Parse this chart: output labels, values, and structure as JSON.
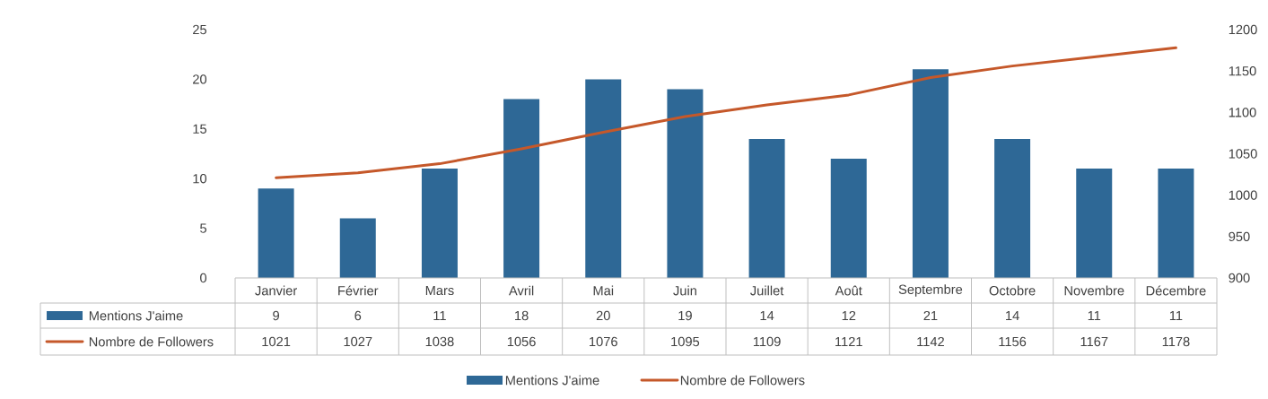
{
  "chart_data": {
    "type": "bar",
    "categories": [
      "Janvier",
      "Février",
      "Mars",
      "Avril",
      "Mai",
      "Juin",
      "Juillet",
      "Août",
      "Septembre",
      "Octobre",
      "Novembre",
      "Décembre"
    ],
    "series": [
      {
        "name": "Mentions J'aime",
        "color": "#2e6896",
        "values": [
          9,
          6,
          11,
          18,
          20,
          19,
          14,
          12,
          21,
          14,
          11,
          11
        ]
      },
      {
        "name": "Nombre de Followers",
        "type": "line",
        "axis": "y2",
        "color": "#c5582a",
        "values": [
          1021,
          1027,
          1038,
          1056,
          1076,
          1095,
          1109,
          1121,
          1142,
          1156,
          1167,
          1178
        ]
      }
    ],
    "ylim": [
      0,
      25
    ],
    "yticks": [
      0,
      5,
      10,
      15,
      20,
      25
    ],
    "y2lim": [
      900,
      1200
    ],
    "y2ticks": [
      900,
      950,
      1000,
      1050,
      1100,
      1150,
      1200
    ],
    "data_labels": true,
    "legend": "bottom",
    "marker": "none",
    "line_style": "solid"
  }
}
